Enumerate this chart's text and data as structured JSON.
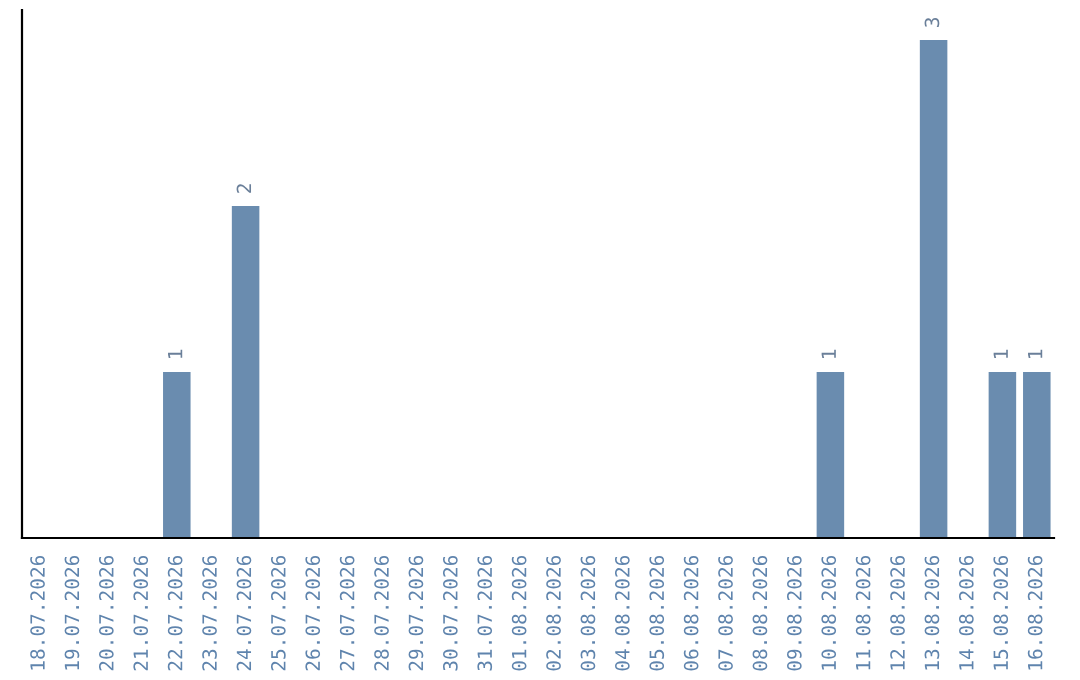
{
  "chart_data": {
    "type": "bar",
    "categories": [
      "18.07.2026",
      "19.07.2026",
      "20.07.2026",
      "21.07.2026",
      "22.07.2026",
      "23.07.2026",
      "24.07.2026",
      "25.07.2026",
      "26.07.2026",
      "27.07.2026",
      "28.07.2026",
      "29.07.2026",
      "30.07.2026",
      "31.07.2026",
      "01.08.2026",
      "02.08.2026",
      "03.08.2026",
      "04.08.2026",
      "05.08.2026",
      "06.08.2026",
      "07.08.2026",
      "08.08.2026",
      "09.08.2026",
      "10.08.2026",
      "11.08.2026",
      "12.08.2026",
      "13.08.2026",
      "14.08.2026",
      "15.08.2026",
      "16.08.2026"
    ],
    "values": [
      0,
      0,
      0,
      0,
      1,
      0,
      2,
      0,
      0,
      0,
      0,
      0,
      0,
      0,
      0,
      0,
      0,
      0,
      0,
      0,
      0,
      0,
      0,
      1,
      0,
      0,
      3,
      0,
      1,
      1
    ],
    "color": "#6a8caf",
    "value_labels": [
      null,
      null,
      null,
      null,
      "1",
      null,
      "2",
      null,
      null,
      null,
      null,
      null,
      null,
      null,
      null,
      null,
      null,
      null,
      null,
      null,
      null,
      null,
      null,
      "1",
      null,
      null,
      "3",
      null,
      "1",
      "1"
    ],
    "grid": false,
    "legend": false
  }
}
